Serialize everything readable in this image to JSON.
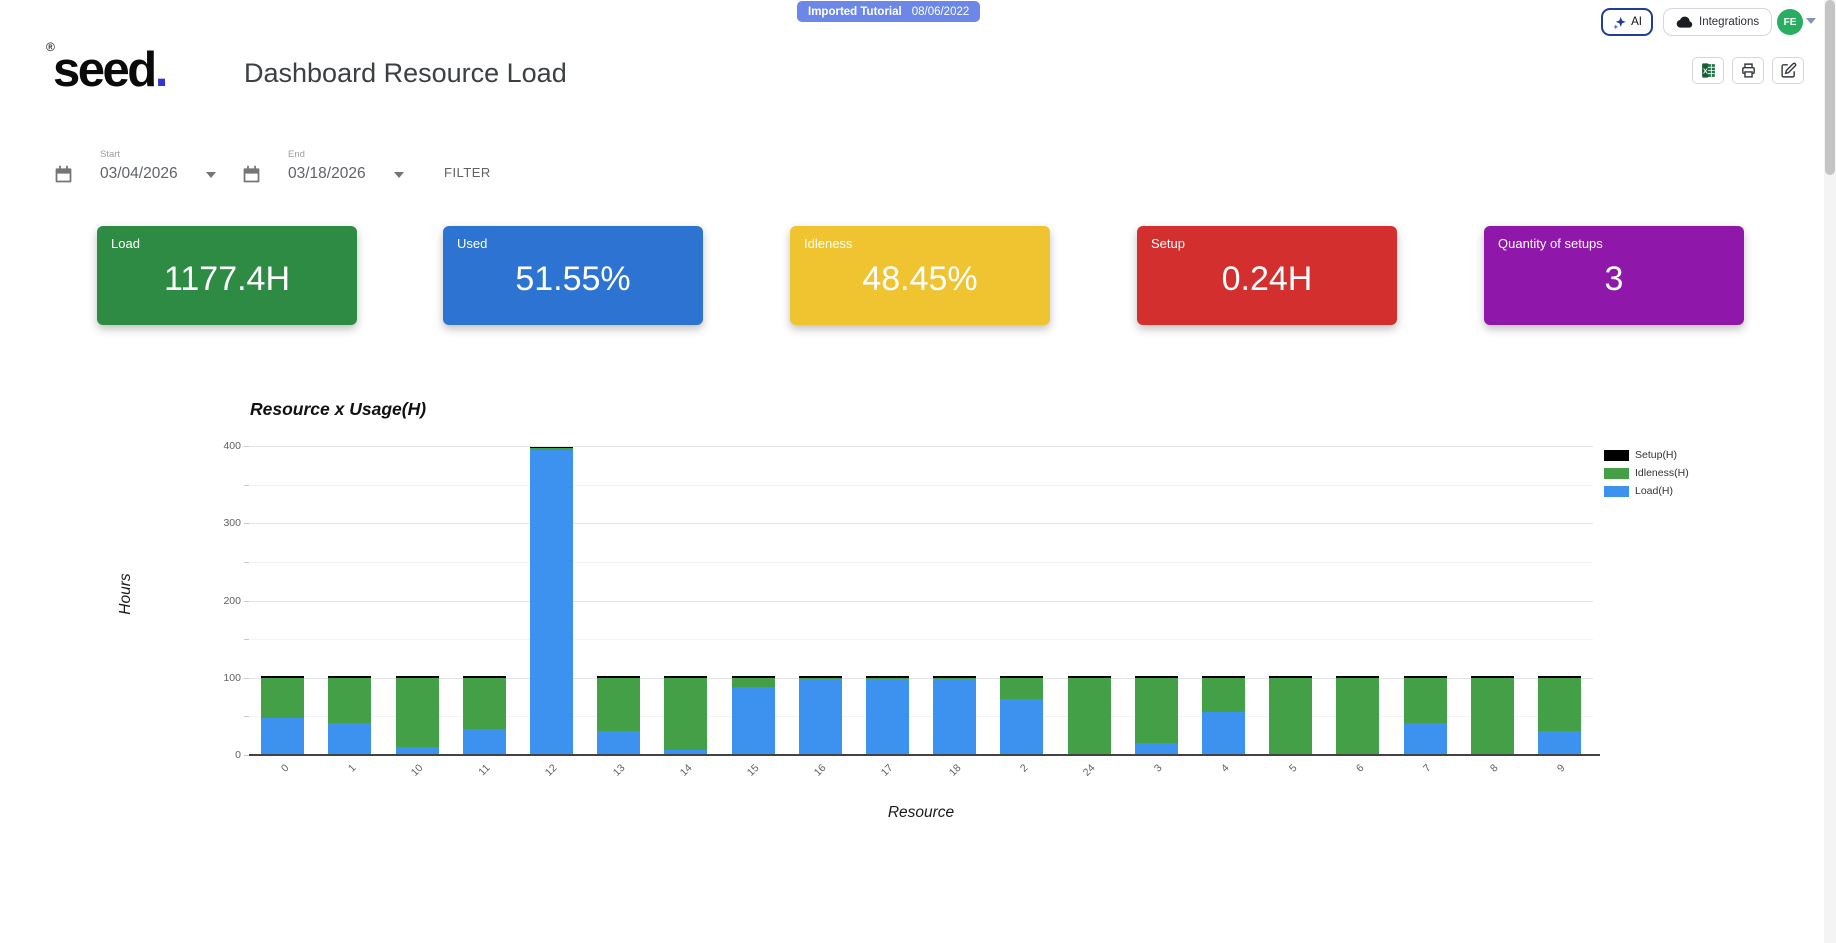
{
  "header": {
    "badge": {
      "label": "Imported Tutorial",
      "date": "08/06/2022"
    },
    "logo": {
      "registered": "®",
      "text": "seed",
      "dot": "."
    },
    "page_title": "Dashboard Resource Load",
    "ai_button_label": "AI",
    "integrations_button_label": "Integrations",
    "avatar_initials": "FE"
  },
  "icons": {
    "ai": "sparkles-icon",
    "integrations": "cloud-icon",
    "export": "excel-icon",
    "print": "printer-icon",
    "edit": "edit-icon",
    "date": "calendar-icon",
    "dropdown": "caret-down-icon"
  },
  "filters": {
    "start": {
      "label": "Start",
      "value": "03/04/2026"
    },
    "end": {
      "label": "End",
      "value": "03/18/2026"
    },
    "filter_button_label": "FILTER"
  },
  "kpi_cards": [
    {
      "label": "Load",
      "value": "1177.4H",
      "color": "#2e8b44"
    },
    {
      "label": "Used",
      "value": "51.55%",
      "color": "#2c73d2"
    },
    {
      "label": "Idleness",
      "value": "48.45%",
      "color": "#f0c330"
    },
    {
      "label": "Setup",
      "value": "0.24H",
      "color": "#d32f2f"
    },
    {
      "label": "Quantity of setups",
      "value": "3",
      "color": "#8f17a9"
    }
  ],
  "chart_data": {
    "type": "bar",
    "stacked": true,
    "title": "Resource x Usage(H)",
    "xlabel": "Resource",
    "ylabel": "Hours",
    "ylim": [
      0,
      400
    ],
    "yticks": [
      0,
      100,
      200,
      300,
      400
    ],
    "grid": true,
    "legend_position": "top-right",
    "legend": [
      {
        "name": "Setup(H)",
        "color": "#000000"
      },
      {
        "name": "Idleness(H)",
        "color": "#43a047"
      },
      {
        "name": "Load(H)",
        "color": "#3d92f0"
      }
    ],
    "categories": [
      "0",
      "1",
      "10",
      "11",
      "12",
      "13",
      "14",
      "15",
      "16",
      "17",
      "18",
      "2",
      "24",
      "3",
      "4",
      "5",
      "6",
      "7",
      "8",
      "9"
    ],
    "series": [
      {
        "name": "Load(H)",
        "color": "#3d92f0",
        "values": [
          48,
          42,
          11,
          34,
          395,
          31,
          6,
          88,
          99,
          99,
          99,
          73,
          0,
          15,
          56,
          0,
          0,
          41,
          0,
          31
        ]
      },
      {
        "name": "Idleness(H)",
        "color": "#43a047",
        "values": [
          52,
          58,
          89,
          66,
          2,
          69,
          94,
          12,
          1,
          1,
          1,
          27,
          100,
          85,
          44,
          100,
          100,
          59,
          100,
          69
        ]
      },
      {
        "name": "Setup(H)",
        "color": "#000000",
        "values": [
          0.01,
          0.01,
          0.01,
          0.01,
          0.04,
          0.01,
          0.01,
          0.01,
          0.01,
          0.01,
          0.01,
          0.01,
          0.01,
          0.01,
          0.01,
          0.01,
          0.01,
          0.01,
          0.01,
          0.01
        ]
      }
    ]
  }
}
